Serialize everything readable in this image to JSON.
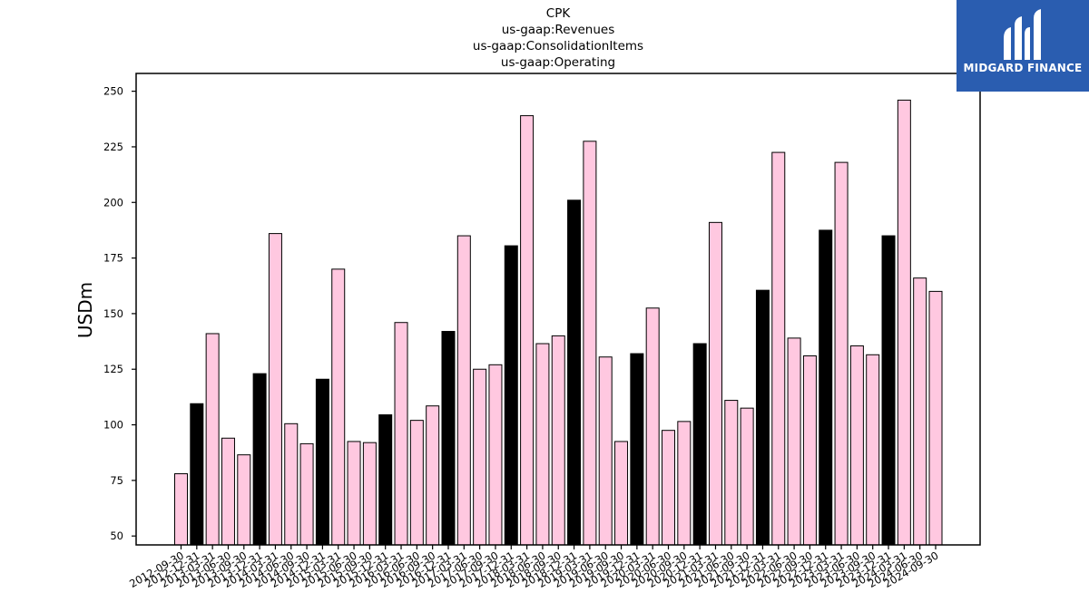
{
  "title_lines": [
    "CPK",
    "us-gaap:Revenues",
    "us-gaap:ConsolidationItems",
    "us-gaap:Operating"
  ],
  "logo": {
    "text": "MIDGARD FINANCE",
    "background": "#2a5db0"
  },
  "chart_data": {
    "type": "bar",
    "title": "CPK\nus-gaap:Revenues\nus-gaap:ConsolidationItems\nus-gaap:Operating",
    "xlabel": "",
    "ylabel": "USDm",
    "ylim": [
      46,
      258
    ],
    "yticks": [
      50,
      75,
      100,
      125,
      150,
      175,
      200,
      225,
      250
    ],
    "grid": false,
    "colors": {
      "default": "#ffc8e0",
      "q4": "#000000",
      "edge": "#000000"
    },
    "categories": [
      "2012-09-30",
      "2012-12-31",
      "2013-03-31",
      "2013-06-30",
      "2013-09-30",
      "2013-12-31",
      "2014-03-31",
      "2014-06-30",
      "2014-09-30",
      "2014-12-31",
      "2015-03-31",
      "2015-06-30",
      "2015-09-30",
      "2015-12-31",
      "2016-03-31",
      "2016-06-30",
      "2016-09-30",
      "2016-12-31",
      "2017-03-31",
      "2017-06-30",
      "2017-09-30",
      "2017-12-31",
      "2018-03-31",
      "2018-06-30",
      "2018-09-30",
      "2018-12-31",
      "2019-03-31",
      "2019-06-30",
      "2019-09-30",
      "2019-12-31",
      "2020-03-31",
      "2020-06-30",
      "2020-09-30",
      "2020-12-31",
      "2021-03-31",
      "2021-06-30",
      "2021-09-30",
      "2021-12-31",
      "2022-03-31",
      "2022-06-30",
      "2022-09-30",
      "2022-12-31",
      "2023-03-31",
      "2023-06-30",
      "2023-09-30",
      "2023-12-31",
      "2024-03-31",
      "2024-06-30",
      "2024-09-30"
    ],
    "values": [
      78,
      109.5,
      141,
      94,
      86.5,
      123,
      186,
      100.5,
      91.5,
      120.5,
      170,
      92.5,
      92,
      104.5,
      146,
      102,
      108.5,
      142,
      185,
      125,
      127,
      180.5,
      239,
      136.5,
      140,
      201,
      227.5,
      130.5,
      92.5,
      132,
      152.5,
      97.5,
      101.5,
      136.5,
      191,
      111,
      107.5,
      160.5,
      222.5,
      139,
      131,
      187.5,
      218,
      135.5,
      131.5,
      185,
      246,
      166,
      160
    ],
    "highlight_fourth_quarter": [
      false,
      true,
      false,
      false,
      false,
      true,
      false,
      false,
      false,
      true,
      false,
      false,
      false,
      true,
      false,
      false,
      false,
      true,
      false,
      false,
      false,
      true,
      false,
      false,
      false,
      true,
      false,
      false,
      false,
      true,
      false,
      false,
      false,
      true,
      false,
      false,
      false,
      true,
      false,
      false,
      false,
      true,
      false,
      false,
      false,
      true,
      false,
      false,
      false
    ]
  }
}
